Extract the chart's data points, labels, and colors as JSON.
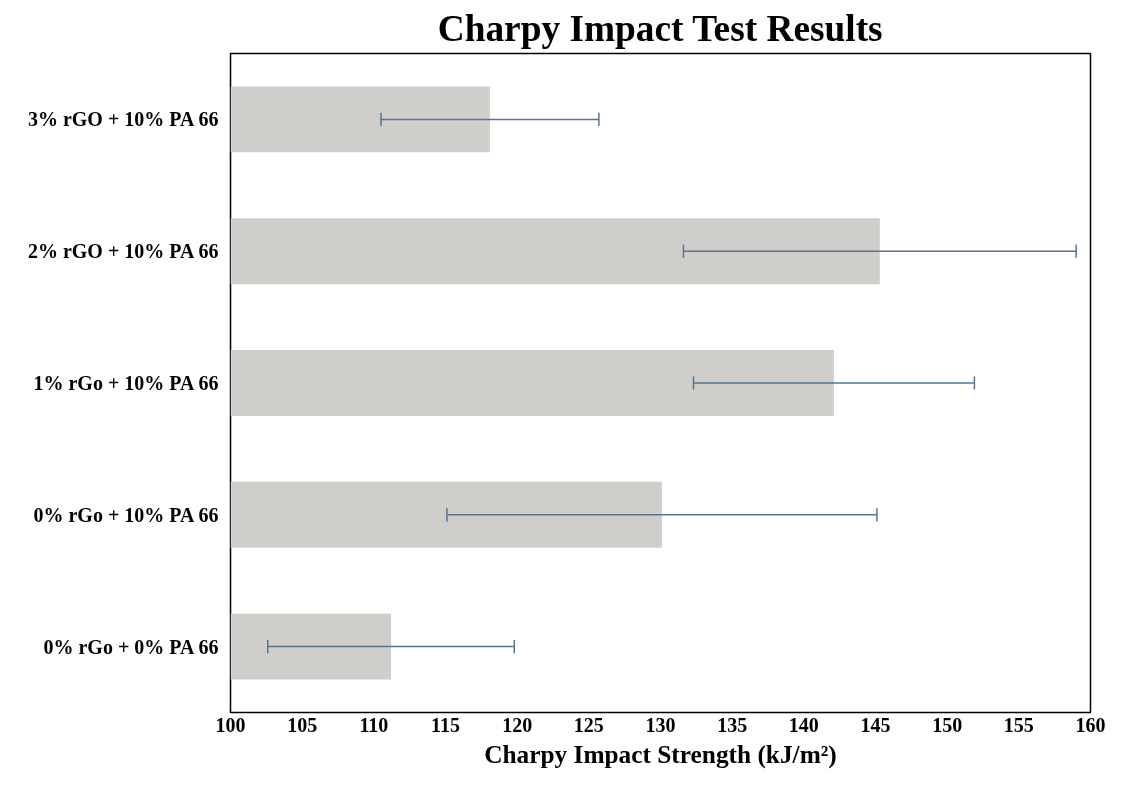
{
  "chart_data": {
    "type": "bar",
    "orientation": "horizontal",
    "title": "Charpy Impact Test Results",
    "xlabel": "Charpy Impact Strength (kJ/m²)",
    "categories": [
      "3% rGO + 10% PA 66",
      "2% rGO + 10% PA 66",
      "1% rGo + 10% PA 66",
      "0% rGo + 10% PA 66",
      "0% rGo + 0% PA 66"
    ],
    "values": [
      118.1,
      145.3,
      142.1,
      130.1,
      111.2
    ],
    "errors": [
      7.6,
      13.7,
      9.8,
      15.0,
      8.6
    ],
    "color": "#d0cecb",
    "xlim": [
      100,
      160
    ],
    "xticks": [
      100,
      105,
      110,
      115,
      120,
      125,
      130,
      135,
      140,
      145,
      150,
      155,
      160
    ],
    "grid": false
  }
}
